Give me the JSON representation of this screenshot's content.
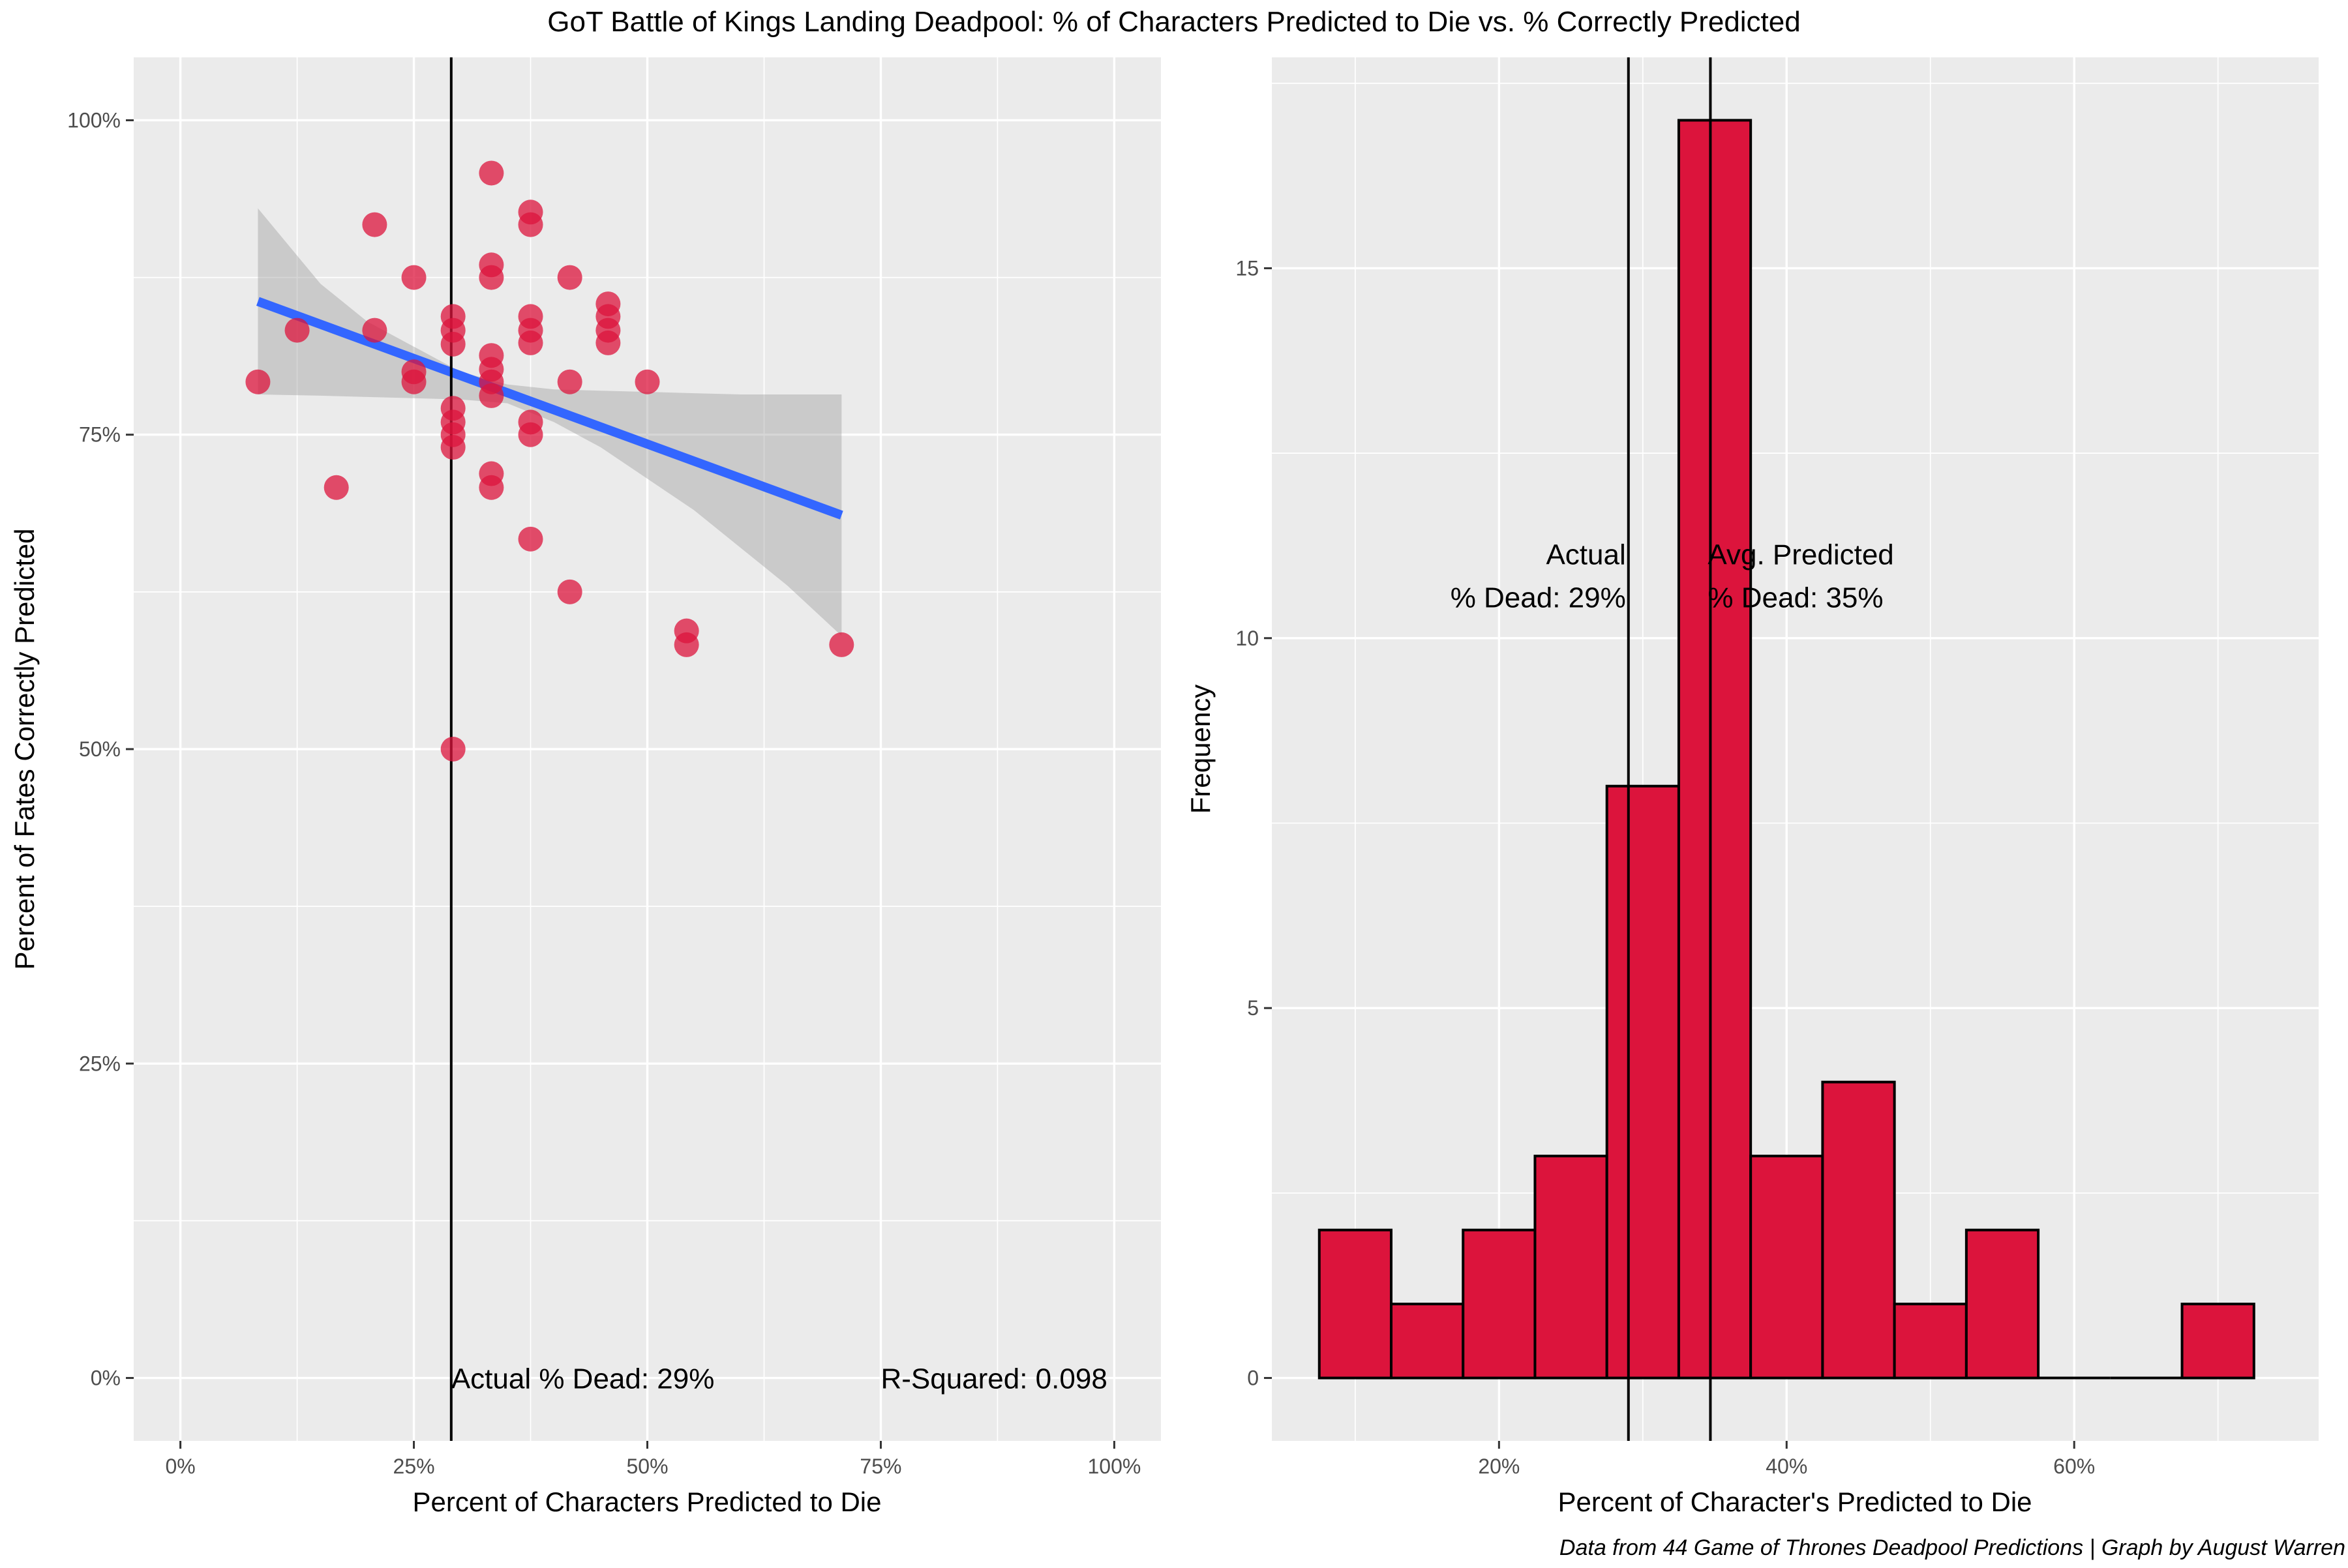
{
  "title": "GoT Battle of Kings Landing Deadpool: % of Characters Predicted to Die vs. % Correctly Predicted",
  "caption": "Data from 44 Game of Thrones Deadpool Predictions | Graph by August Warren",
  "colors": {
    "point": "#DC143C",
    "bar_fill": "#DC143C",
    "bar_stroke": "#000000",
    "fit_line": "#3366FF",
    "ribbon": "#999999",
    "panel_bg": "#EBEBEB",
    "vline": "#000000"
  },
  "chart_data": [
    {
      "type": "scatter",
      "xlabel": "Percent of Characters Predicted to Die",
      "ylabel": "Percent of Fates Correctly Predicted",
      "xlim": [
        -0.05,
        1.05
      ],
      "ylim": [
        -0.05,
        1.05
      ],
      "x_ticks": [
        0,
        0.25,
        0.5,
        0.75,
        1.0
      ],
      "x_tick_labels": [
        "0%",
        "25%",
        "50%",
        "75%",
        "100%"
      ],
      "y_ticks": [
        0,
        0.25,
        0.5,
        0.75,
        1.0
      ],
      "y_tick_labels": [
        "0%",
        "25%",
        "50%",
        "75%",
        "100%"
      ],
      "grid": true,
      "points": [
        {
          "x": 0.083,
          "y": 0.792
        },
        {
          "x": 0.125,
          "y": 0.833
        },
        {
          "x": 0.167,
          "y": 0.708
        },
        {
          "x": 0.208,
          "y": 0.917
        },
        {
          "x": 0.208,
          "y": 0.833
        },
        {
          "x": 0.25,
          "y": 0.875
        },
        {
          "x": 0.25,
          "y": 0.8
        },
        {
          "x": 0.25,
          "y": 0.792
        },
        {
          "x": 0.292,
          "y": 0.844
        },
        {
          "x": 0.292,
          "y": 0.833
        },
        {
          "x": 0.292,
          "y": 0.822
        },
        {
          "x": 0.292,
          "y": 0.771
        },
        {
          "x": 0.292,
          "y": 0.76
        },
        {
          "x": 0.292,
          "y": 0.75
        },
        {
          "x": 0.292,
          "y": 0.74
        },
        {
          "x": 0.292,
          "y": 0.5
        },
        {
          "x": 0.333,
          "y": 0.958
        },
        {
          "x": 0.333,
          "y": 0.885
        },
        {
          "x": 0.333,
          "y": 0.875
        },
        {
          "x": 0.333,
          "y": 0.813
        },
        {
          "x": 0.333,
          "y": 0.802
        },
        {
          "x": 0.333,
          "y": 0.792
        },
        {
          "x": 0.333,
          "y": 0.781
        },
        {
          "x": 0.333,
          "y": 0.719
        },
        {
          "x": 0.333,
          "y": 0.708
        },
        {
          "x": 0.375,
          "y": 0.927
        },
        {
          "x": 0.375,
          "y": 0.917
        },
        {
          "x": 0.375,
          "y": 0.844
        },
        {
          "x": 0.375,
          "y": 0.833
        },
        {
          "x": 0.375,
          "y": 0.823
        },
        {
          "x": 0.375,
          "y": 0.76
        },
        {
          "x": 0.375,
          "y": 0.75
        },
        {
          "x": 0.375,
          "y": 0.667
        },
        {
          "x": 0.417,
          "y": 0.875
        },
        {
          "x": 0.417,
          "y": 0.792
        },
        {
          "x": 0.417,
          "y": 0.625
        },
        {
          "x": 0.458,
          "y": 0.854
        },
        {
          "x": 0.458,
          "y": 0.844
        },
        {
          "x": 0.458,
          "y": 0.833
        },
        {
          "x": 0.458,
          "y": 0.823
        },
        {
          "x": 0.5,
          "y": 0.792
        },
        {
          "x": 0.542,
          "y": 0.594
        },
        {
          "x": 0.542,
          "y": 0.583
        },
        {
          "x": 0.708,
          "y": 0.583
        }
      ],
      "fit": {
        "x0": 0.083,
        "y0": 0.856,
        "x1": 0.708,
        "y1": 0.686
      },
      "ribbon": {
        "x": [
          0.083,
          0.15,
          0.2,
          0.25,
          0.3,
          0.35,
          0.4,
          0.45,
          0.5,
          0.55,
          0.6,
          0.65,
          0.708
        ],
        "upper": [
          0.93,
          0.87,
          0.84,
          0.82,
          0.8,
          0.79,
          0.786,
          0.785,
          0.784,
          0.783,
          0.782,
          0.782,
          0.782
        ],
        "lower": [
          0.782,
          0.781,
          0.78,
          0.779,
          0.778,
          0.775,
          0.76,
          0.74,
          0.715,
          0.69,
          0.66,
          0.63,
          0.59
        ]
      },
      "vline": {
        "x": 0.29
      },
      "annotations": [
        {
          "text": "Actual % Dead:  29%",
          "x": 0.29,
          "y": 0
        },
        {
          "text": "R-Squared:  0.098",
          "x": 0.75,
          "y": 0
        }
      ]
    },
    {
      "type": "bar",
      "xlabel": "Percent of Character's Predicted to Die",
      "ylabel": "Frequency",
      "xlim": [
        0.042,
        0.77
      ],
      "ylim": [
        -0.85,
        17.85
      ],
      "x_ticks": [
        0.2,
        0.4,
        0.6
      ],
      "x_tick_labels": [
        "20%",
        "40%",
        "60%"
      ],
      "y_ticks": [
        0,
        5,
        10,
        15
      ],
      "y_tick_labels": [
        "0",
        "5",
        "10",
        "15"
      ],
      "grid": true,
      "bins": [
        {
          "x0": 0.075,
          "x1": 0.125,
          "count": 2
        },
        {
          "x0": 0.125,
          "x1": 0.175,
          "count": 1
        },
        {
          "x0": 0.175,
          "x1": 0.225,
          "count": 2
        },
        {
          "x0": 0.225,
          "x1": 0.275,
          "count": 3
        },
        {
          "x0": 0.275,
          "x1": 0.325,
          "count": 8
        },
        {
          "x0": 0.325,
          "x1": 0.375,
          "count": 17
        },
        {
          "x0": 0.375,
          "x1": 0.425,
          "count": 3
        },
        {
          "x0": 0.425,
          "x1": 0.475,
          "count": 4
        },
        {
          "x0": 0.475,
          "x1": 0.525,
          "count": 1
        },
        {
          "x0": 0.525,
          "x1": 0.575,
          "count": 2
        },
        {
          "x0": 0.575,
          "x1": 0.625,
          "count": 0
        },
        {
          "x0": 0.625,
          "x1": 0.675,
          "count": 0
        },
        {
          "x0": 0.675,
          "x1": 0.725,
          "count": 1
        }
      ],
      "vlines": [
        {
          "x": 0.29
        },
        {
          "x": 0.347
        }
      ],
      "annotations": [
        {
          "lines": [
            "Actual",
            "% Dead:  29%"
          ],
          "x": 0.29,
          "y": 11.0,
          "align": "end"
        },
        {
          "lines": [
            "Avg. Predicted",
            "% Dead:  35%"
          ],
          "x": 0.347,
          "y": 11.0,
          "align": "start"
        }
      ]
    }
  ]
}
